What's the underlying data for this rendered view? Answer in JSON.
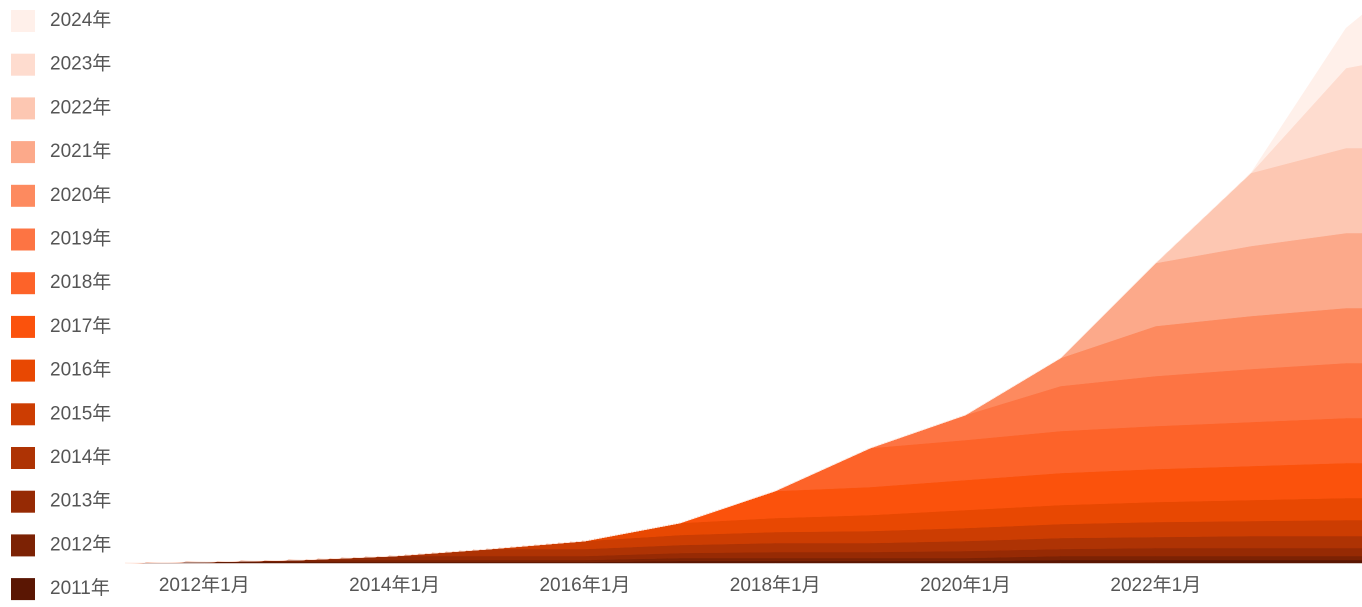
{
  "chart_data": {
    "type": "stacked-area",
    "x": [
      "2011-03",
      "2012-01",
      "2013-01",
      "2014-01",
      "2015-01",
      "2016-01",
      "2017-01",
      "2018-01",
      "2019-01",
      "2020-01",
      "2021-01",
      "2022-01",
      "2023-01",
      "2024-01",
      "2024-03"
    ],
    "xlim": [
      "2011-03",
      "2024-03"
    ],
    "xticks": [
      {
        "value": "2012-01",
        "label": "2012年1月"
      },
      {
        "value": "2014-01",
        "label": "2014年1月"
      },
      {
        "value": "2016-01",
        "label": "2016年1月"
      },
      {
        "value": "2018-01",
        "label": "2018年1月"
      },
      {
        "value": "2020-01",
        "label": "2020年1月"
      },
      {
        "value": "2022-01",
        "label": "2022年1月"
      }
    ],
    "ylim": [
      0,
      560
    ],
    "legend": "left",
    "series": [
      {
        "name": "2011年",
        "color": "#5a1603",
        "values": [
          0,
          1,
          1,
          1,
          1,
          1,
          2,
          2,
          2,
          2,
          3,
          3,
          3,
          3,
          3
        ]
      },
      {
        "name": "2012年",
        "color": "#7c2204",
        "values": [
          0,
          0,
          2,
          2,
          2,
          2,
          3,
          3,
          3,
          3,
          4,
          4,
          4,
          4,
          4
        ]
      },
      {
        "name": "2013年",
        "color": "#962a04",
        "values": [
          0,
          0,
          0,
          4,
          4,
          4,
          5,
          6,
          6,
          7,
          7,
          8,
          8,
          8,
          8
        ]
      },
      {
        "name": "2014年",
        "color": "#ae3304",
        "values": [
          0,
          0,
          0,
          0,
          7,
          7,
          8,
          9,
          9,
          10,
          11,
          11,
          12,
          12,
          12
        ]
      },
      {
        "name": "2015年",
        "color": "#cc3d02",
        "values": [
          0,
          0,
          0,
          0,
          0,
          8,
          10,
          11,
          12,
          13,
          14,
          15,
          15,
          16,
          16
        ]
      },
      {
        "name": "2016年",
        "color": "#e84802",
        "values": [
          0,
          0,
          0,
          0,
          0,
          0,
          12,
          14,
          16,
          18,
          19,
          20,
          21,
          22,
          22
        ]
      },
      {
        "name": "2017年",
        "color": "#fb520c",
        "values": [
          0,
          0,
          0,
          0,
          0,
          0,
          0,
          27,
          28,
          30,
          32,
          33,
          34,
          35,
          35
        ]
      },
      {
        "name": "2018年",
        "color": "#fd6329",
        "values": [
          0,
          0,
          0,
          0,
          0,
          0,
          0,
          0,
          39,
          40,
          42,
          43,
          44,
          45,
          45
        ]
      },
      {
        "name": "2019年",
        "color": "#fd7443",
        "values": [
          0,
          0,
          0,
          0,
          0,
          0,
          0,
          0,
          0,
          25,
          45,
          50,
          53,
          55,
          55
        ]
      },
      {
        "name": "2020年",
        "color": "#fd8a5f",
        "values": [
          0,
          0,
          0,
          0,
          0,
          0,
          0,
          0,
          0,
          0,
          28,
          50,
          53,
          55,
          55
        ]
      },
      {
        "name": "2021年",
        "color": "#fca98a",
        "values": [
          0,
          0,
          0,
          0,
          0,
          0,
          0,
          0,
          0,
          0,
          0,
          63,
          70,
          75,
          75
        ]
      },
      {
        "name": "2022年",
        "color": "#fdc7b2",
        "values": [
          0,
          0,
          0,
          0,
          0,
          0,
          0,
          0,
          0,
          0,
          0,
          0,
          73,
          85,
          85
        ]
      },
      {
        "name": "2023年",
        "color": "#fedccf",
        "values": [
          0,
          0,
          0,
          0,
          0,
          0,
          0,
          0,
          0,
          0,
          0,
          0,
          0,
          80,
          83
        ]
      },
      {
        "name": "2024年",
        "color": "#fff0ea",
        "values": [
          0,
          0,
          0,
          0,
          0,
          0,
          0,
          0,
          0,
          0,
          0,
          0,
          0,
          40,
          50
        ]
      }
    ]
  }
}
